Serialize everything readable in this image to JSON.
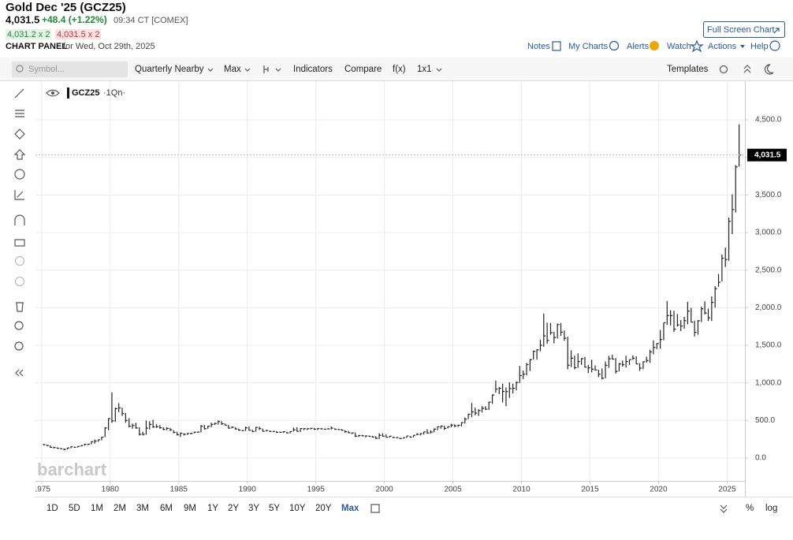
{
  "ui": {
    "title": "Gold Dec '25 (GCZ25)",
    "price": "4,031.5",
    "change": "+48.4 (+1.22%)",
    "time": "09:34 CT [COMEX]",
    "bid": "4,031.2 x 2",
    "ask": "4,031.5 x 2",
    "panel": "CHART PANEL",
    "panel_date": "for Wed, Oct 29th, 2025",
    "full_screen": "Full Screen Chart",
    "links": [
      "Notes",
      "My Charts",
      "Alerts",
      "Watch",
      "Actions",
      "Help"
    ],
    "search_placeholder": "Symbol...",
    "toolbar": [
      "Quarterly Nearby",
      "Max",
      "Indicators",
      "Compare",
      "f(x)",
      "1x1"
    ],
    "templates": "Templates",
    "periods": [
      "1D",
      "5D",
      "1M",
      "2M",
      "3M",
      "6M",
      "9M",
      "1Y",
      "2Y",
      "3Y",
      "5Y",
      "10Y",
      "20Y",
      "Max"
    ],
    "percent": "%",
    "log": "log"
  },
  "chart_data": {
    "type": "ohlc",
    "symbol": "GCZ25",
    "interval": "·1Qn·",
    "watermark": "barchart",
    "color": "#222",
    "xlim": [
      1974.55,
      2026.3
    ],
    "xticks": [
      1975,
      1980,
      1985,
      1990,
      1995,
      2000,
      2005,
      2010,
      2015,
      2020,
      2025
    ],
    "ylim": [
      -304,
      5014
    ],
    "yticks": [
      {
        "value": 0,
        "label": "0.0"
      },
      {
        "value": 500,
        "label": "500.0"
      },
      {
        "value": 1000,
        "label": "1,000.0"
      },
      {
        "value": 1500,
        "label": "1,500.0"
      },
      {
        "value": 2000,
        "label": "2,000.0"
      },
      {
        "value": 2500,
        "label": "2,500.0"
      },
      {
        "value": 3000,
        "label": "3,000.0"
      },
      {
        "value": 3500,
        "label": "3,500.0"
      },
      {
        "value": 4000,
        "label": "4,000.0"
      },
      {
        "value": 4500,
        "label": "4,500.0"
      }
    ],
    "grid": true,
    "last_price": 4031.5,
    "last_price_label": "4,031.5",
    "bars": [
      {
        "year": 1975,
        "high": [
          186,
          178,
          168,
          150
        ],
        "low": [
          170,
          162,
          138,
          128
        ],
        "close": [
          178,
          166,
          142,
          140
        ]
      },
      {
        "year": 1976,
        "high": [
          142,
          132,
          126,
          138
        ],
        "low": [
          126,
          122,
          104,
          114
        ],
        "close": [
          130,
          124,
          116,
          134
        ]
      },
      {
        "year": 1977,
        "high": [
          152,
          152,
          156,
          168
        ],
        "low": [
          130,
          138,
          140,
          152
        ],
        "close": [
          150,
          142,
          154,
          166
        ]
      },
      {
        "year": 1978,
        "high": [
          190,
          188,
          222,
          246
        ],
        "low": [
          166,
          172,
          182,
          192
        ],
        "close": [
          182,
          184,
          218,
          226
        ]
      },
      {
        "year": 1979,
        "high": [
          246,
          280,
          410,
          530
        ],
        "low": [
          216,
          236,
          280,
          370
        ],
        "close": [
          242,
          278,
          400,
          524
        ]
      },
      {
        "year": 1980,
        "high": [
          875,
          670,
          730,
          670
        ],
        "low": [
          470,
          480,
          610,
          560
        ],
        "close": [
          494,
          656,
          666,
          592
        ]
      },
      {
        "year": 1981,
        "high": [
          600,
          530,
          460,
          470
        ],
        "low": [
          470,
          410,
          390,
          390
        ],
        "close": [
          500,
          422,
          432,
          400
        ]
      },
      {
        "year": 1982,
        "high": [
          410,
          350,
          500,
          490
        ],
        "low": [
          300,
          300,
          310,
          380
        ],
        "close": [
          316,
          316,
          398,
          448
        ]
      },
      {
        "year": 1983,
        "high": [
          510,
          450,
          440,
          410
        ],
        "low": [
          400,
          400,
          390,
          370
        ],
        "close": [
          414,
          416,
          402,
          382
        ]
      },
      {
        "year": 1984,
        "high": [
          410,
          400,
          370,
          350
        ],
        "low": [
          370,
          360,
          330,
          300
        ],
        "close": [
          394,
          376,
          342,
          310
        ]
      },
      {
        "year": 1985,
        "high": [
          340,
          330,
          330,
          334
        ],
        "low": [
          280,
          300,
          310,
          315
        ],
        "close": [
          330,
          316,
          326,
          328
        ]
      },
      {
        "year": 1986,
        "high": [
          350,
          350,
          440,
          440
        ],
        "low": [
          330,
          336,
          340,
          380
        ],
        "close": [
          344,
          346,
          424,
          390
        ]
      },
      {
        "year": 1987,
        "high": [
          430,
          470,
          470,
          500
        ],
        "low": [
          390,
          410,
          440,
          445
        ],
        "close": [
          422,
          448,
          460,
          486
        ]
      },
      {
        "year": 1988,
        "high": [
          490,
          460,
          440,
          420
        ],
        "low": [
          440,
          436,
          392,
          396
        ],
        "close": [
          456,
          436,
          398,
          410
        ]
      },
      {
        "year": 1989,
        "high": [
          410,
          392,
          370,
          418
        ],
        "low": [
          380,
          360,
          356,
          360
        ],
        "close": [
          386,
          372,
          366,
          402
        ]
      },
      {
        "year": 1990,
        "high": [
          420,
          376,
          412,
          416
        ],
        "low": [
          366,
          345,
          350,
          374
        ],
        "close": [
          370,
          352,
          408,
          392
        ]
      },
      {
        "year": 1991,
        "high": [
          392,
          374,
          366,
          360
        ],
        "low": [
          352,
          354,
          350,
          350
        ],
        "close": [
          356,
          366,
          354,
          354
        ]
      },
      {
        "year": 1992,
        "high": [
          356,
          352,
          356,
          350
        ],
        "low": [
          338,
          338,
          336,
          332
        ],
        "close": [
          342,
          342,
          350,
          334
        ]
      },
      {
        "year": 1993,
        "high": [
          356,
          406,
          410,
          396
        ],
        "low": [
          328,
          352,
          350,
          346
        ],
        "close": [
          352,
          376,
          356,
          392
        ]
      },
      {
        "year": 1994,
        "high": [
          400,
          396,
          400,
          400
        ],
        "low": [
          372,
          372,
          380,
          376
        ],
        "close": [
          390,
          390,
          396,
          384
        ]
      },
      {
        "year": 1995,
        "high": [
          396,
          398,
          390,
          396
        ],
        "low": [
          374,
          382,
          380,
          380
        ],
        "close": [
          392,
          388,
          384,
          388
        ]
      },
      {
        "year": 1996,
        "high": [
          420,
          396,
          386,
          386
        ],
        "low": [
          380,
          380,
          376,
          366
        ],
        "close": [
          398,
          382,
          380,
          370
        ]
      },
      {
        "year": 1997,
        "high": [
          370,
          360,
          340,
          340
        ],
        "low": [
          338,
          330,
          318,
          280
        ],
        "close": [
          350,
          336,
          334,
          290
        ]
      },
      {
        "year": 1998,
        "high": [
          304,
          308,
          300,
          300
        ],
        "low": [
          280,
          288,
          274,
          286
        ],
        "close": [
          300,
          296,
          294,
          288
        ]
      },
      {
        "year": 1999,
        "high": [
          296,
          290,
          330,
          330
        ],
        "low": [
          276,
          254,
          252,
          282
        ],
        "close": [
          280,
          262,
          302,
          290
        ]
      },
      {
        "year": 2000,
        "high": [
          316,
          294,
          284,
          276
        ],
        "low": [
          276,
          272,
          266,
          264
        ],
        "close": [
          276,
          290,
          274,
          272
        ]
      },
      {
        "year": 2001,
        "high": [
          270,
          272,
          292,
          292
        ],
        "low": [
          254,
          258,
          268,
          272
        ],
        "close": [
          258,
          270,
          294,
          278
        ]
      },
      {
        "year": 2002,
        "high": [
          306,
          330,
          330,
          350
        ],
        "low": [
          276,
          302,
          300,
          312
        ],
        "close": [
          302,
          316,
          324,
          348
        ]
      },
      {
        "year": 2003,
        "high": [
          384,
          370,
          394,
          418
        ],
        "low": [
          322,
          324,
          342,
          370
        ],
        "close": [
          334,
          346,
          384,
          416
        ]
      },
      {
        "year": 2004,
        "high": [
          432,
          430,
          420,
          456
        ],
        "low": [
          390,
          374,
          394,
          410
        ],
        "close": [
          424,
          394,
          416,
          438
        ]
      },
      {
        "year": 2005,
        "high": [
          448,
          444,
          474,
          540
        ],
        "low": [
          410,
          414,
          420,
          458
        ],
        "close": [
          428,
          436,
          472,
          518
        ]
      },
      {
        "year": 2006,
        "high": [
          590,
          732,
          670,
          650
        ],
        "low": [
          520,
          544,
          570,
          560
        ],
        "close": [
          582,
          614,
          598,
          632
        ]
      },
      {
        "year": 2007,
        "high": [
          690,
          690,
          750,
          846
        ],
        "low": [
          606,
          640,
          640,
          720
        ],
        "close": [
          662,
          650,
          744,
          838
        ]
      },
      {
        "year": 2008,
        "high": [
          1030,
          946,
          990,
          940
        ],
        "low": [
          870,
          850,
          740,
          690
        ],
        "close": [
          918,
          928,
          886,
          884
        ]
      },
      {
        "year": 2009,
        "high": [
          1007,
          990,
          1020,
          1226
        ],
        "low": [
          800,
          860,
          900,
          1000
        ],
        "close": [
          924,
          928,
          1004,
          1096
        ]
      },
      {
        "year": 2010,
        "high": [
          1164,
          1265,
          1318,
          1430
        ],
        "low": [
          1050,
          1100,
          1158,
          1310
        ],
        "close": [
          1116,
          1244,
          1308,
          1420
        ]
      },
      {
        "year": 2011,
        "high": [
          1448,
          1575,
          1923,
          1800
        ],
        "low": [
          1310,
          1420,
          1480,
          1520
        ],
        "close": [
          1439,
          1500,
          1625,
          1565
        ]
      },
      {
        "year": 2012,
        "high": [
          1795,
          1680,
          1790,
          1797
        ],
        "low": [
          1640,
          1525,
          1590,
          1625
        ],
        "close": [
          1668,
          1604,
          1776,
          1675
        ]
      },
      {
        "year": 2013,
        "high": [
          1696,
          1614,
          1434,
          1362
        ],
        "low": [
          1560,
          1180,
          1210,
          1180
        ],
        "close": [
          1595,
          1234,
          1328,
          1202
        ]
      },
      {
        "year": 2014,
        "high": [
          1392,
          1330,
          1346,
          1240
        ],
        "low": [
          1200,
          1240,
          1205,
          1130
        ],
        "close": [
          1284,
          1322,
          1210,
          1200
        ]
      },
      {
        "year": 2015,
        "high": [
          1308,
          1232,
          1175,
          1192
        ],
        "low": [
          1140,
          1162,
          1077,
          1046
        ],
        "close": [
          1183,
          1172,
          1115,
          1061
        ]
      },
      {
        "year": 2016,
        "high": [
          1284,
          1360,
          1375,
          1330
        ],
        "low": [
          1061,
          1200,
          1310,
          1124
        ],
        "close": [
          1233,
          1321,
          1316,
          1152
        ]
      },
      {
        "year": 2017,
        "high": [
          1265,
          1296,
          1362,
          1310
        ],
        "low": [
          1151,
          1216,
          1204,
          1236
        ],
        "close": [
          1251,
          1242,
          1284,
          1309
        ]
      },
      {
        "year": 2018,
        "high": [
          1366,
          1354,
          1262,
          1285
        ],
        "low": [
          1306,
          1250,
          1160,
          1180
        ],
        "close": [
          1327,
          1253,
          1196,
          1281
        ]
      },
      {
        "year": 2019,
        "high": [
          1349,
          1442,
          1566,
          1528
        ],
        "low": [
          1270,
          1266,
          1380,
          1450
        ],
        "close": [
          1298,
          1413,
          1472,
          1523
        ]
      },
      {
        "year": 2020,
        "high": [
          1704,
          1800,
          2089,
          1966
        ],
        "low": [
          1455,
          1567,
          1771,
          1764
        ],
        "close": [
          1577,
          1800,
          1895,
          1895
        ]
      },
      {
        "year": 2021,
        "high": [
          1959,
          1916,
          1836,
          1879
        ],
        "low": [
          1677,
          1750,
          1690,
          1721
        ],
        "close": [
          1715,
          1771,
          1757,
          1828
        ]
      },
      {
        "year": 2022,
        "high": [
          2078,
          1998,
          1828,
          1835
        ],
        "low": [
          1780,
          1806,
          1618,
          1640
        ],
        "close": [
          1954,
          1807,
          1672,
          1826
        ]
      },
      {
        "year": 2023,
        "high": [
          2014,
          2085,
          1988,
          2152
        ],
        "low": [
          1809,
          1912,
          1823,
          1823
        ],
        "close": [
          1986,
          1929,
          1866,
          2071
        ]
      },
      {
        "year": 2024,
        "high": [
          2286,
          2450,
          2708,
          2800
        ],
        "low": [
          2001,
          2277,
          2350,
          2541
        ],
        "close": [
          2254,
          2339,
          2659,
          2641
        ]
      },
      {
        "year": 2025,
        "high": [
          3200,
          3509,
          3897,
          4440
        ],
        "low": [
          2625,
          2978,
          3268,
          3878
        ],
        "close": [
          3150,
          3307,
          3873,
          4031.5
        ]
      }
    ]
  }
}
